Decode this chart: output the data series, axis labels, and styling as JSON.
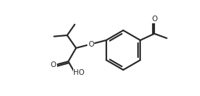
{
  "bg_color": "#ffffff",
  "line_color": "#2a2a2a",
  "lw": 1.6,
  "figsize": [
    2.84,
    1.36
  ],
  "dpi": 100,
  "xlim": [
    0,
    284
  ],
  "ylim": [
    0,
    136
  ],
  "font_size": 7.5
}
